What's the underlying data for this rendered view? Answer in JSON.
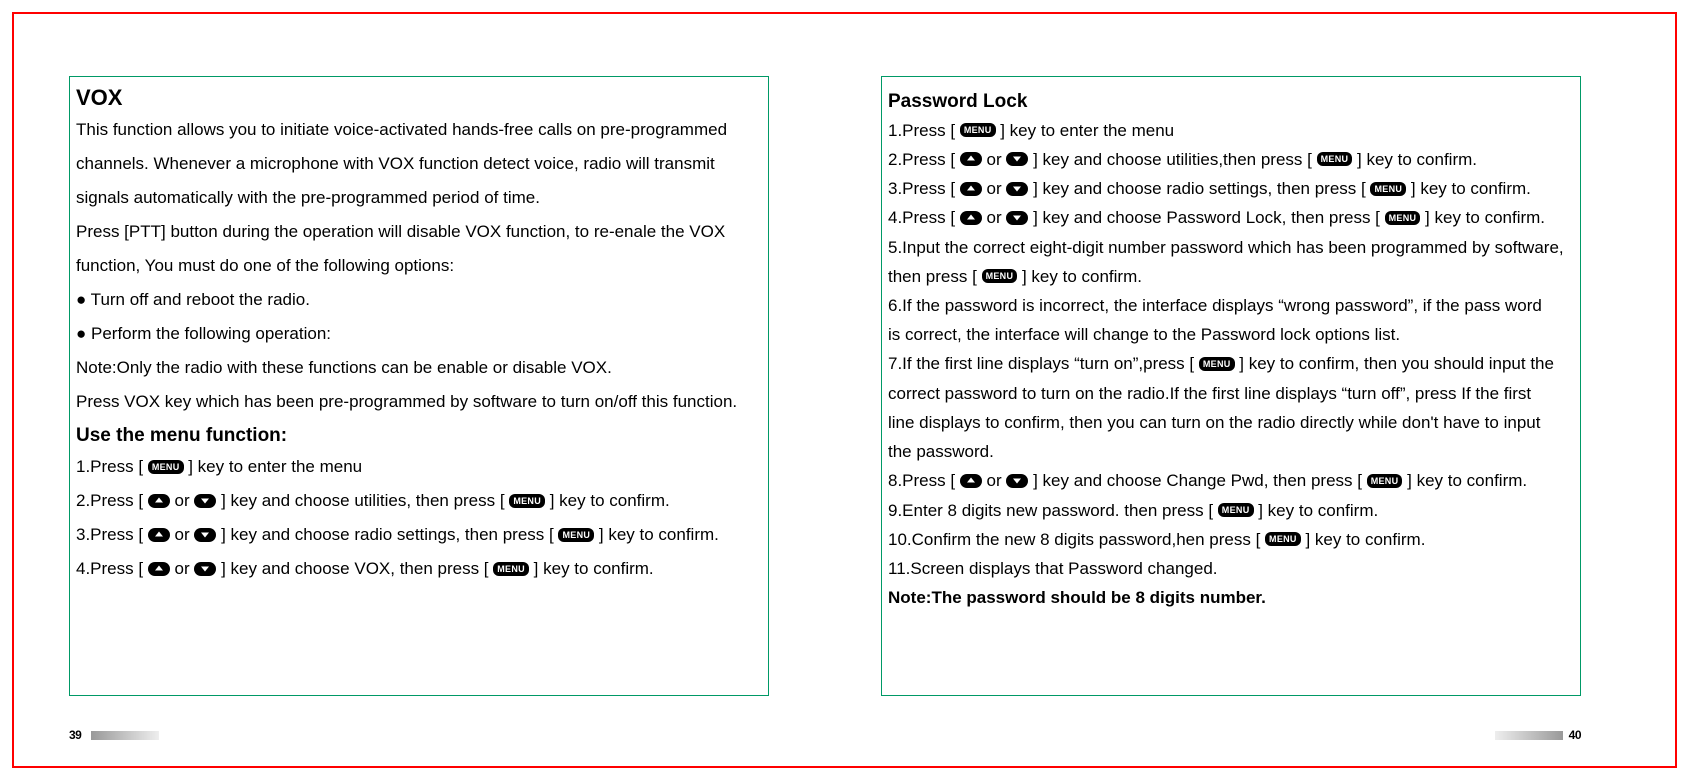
{
  "colors": {
    "outer_border": "#ff0000",
    "box_border": "#009966",
    "text": "#000000",
    "icon_bg": "#000000",
    "icon_fg": "#ffffff",
    "grad_dark": "#999999",
    "grad_light": "#eeeeee"
  },
  "typography": {
    "body_fontsize": 17,
    "heading_lg_fontsize": 22,
    "heading_md_fontsize": 19,
    "page_num_fontsize": 12
  },
  "icons": {
    "menu_label": "MENU"
  },
  "left_page": {
    "page_number": "39",
    "heading": "VOX",
    "para1_l1": "This function allows you to initiate voice-activated hands-free calls on pre-programmed",
    "para1_l2": "channels. Whenever a microphone with VOX function detect voice, radio will transmit",
    "para1_l3": "signals automatically with the pre-programmed period of time.",
    "para2_l1": "Press [PTT] button during the operation will disable VOX function, to re-enale the VOX",
    "para2_l2": "function, You must do one of the following options:",
    "bullet1": "● Turn off and reboot the radio.",
    "bullet2": "● Perform the following operation:",
    "note": "Note:Only the radio with these functions can be enable or disable VOX.",
    "hint": "Press VOX key which has been pre-programmed by software to turn on/off this function.",
    "sub_heading": "Use the menu function:",
    "step1_a": "1.Press [ ",
    "step1_b": " ] key to enter the menu",
    "step2_a": "2.Press [ ",
    "step2_mid": " or ",
    "step2_b": "  ] key and choose utilities, then press [ ",
    "step2_c": " ] key to confirm.",
    "step3_a": "3.Press [ ",
    "step3_b": "  ] key and choose radio settings, then press [ ",
    "step3_c": " ] key to confirm.",
    "step4_a": "4.Press [ ",
    "step4_b": "  ] key and choose VOX, then press [ ",
    "step4_c": " ] key to confirm."
  },
  "right_page": {
    "page_number": "40",
    "heading": "Password Lock",
    "s1_a": "1.Press [ ",
    "s1_b": " ] key to enter the menu",
    "mid_or": " or ",
    "s2_a": "2.Press [ ",
    "s2_b": "  ] key and choose utilities,then press [ ",
    "s2_c": " ] key to confirm.",
    "s3_a": "3.Press [ ",
    "s3_b": "  ] key and choose radio settings, then press [ ",
    "s3_c": " ] key to confirm.",
    "s4_a": "4.Press [ ",
    "s4_b": "  ] key and choose Password Lock, then press [ ",
    "s4_c": " ] key to confirm.",
    "s5_l1": "5.Input the correct eight-digit number password which has been programmed by software,",
    "s5_l2a": "then press [ ",
    "s5_l2b": " ] key to confirm.",
    "s6_l1": "6.If the password is incorrect, the interface displays “wrong password”, if the pass word",
    "s6_l2": "is correct, the interface will change to the Password lock options list.",
    "s7_l1a": "7.If the first line displays “turn on”,press [ ",
    "s7_l1b": " ] key to confirm, then you should input the",
    "s7_l2": "correct password to turn on the radio.If the first line displays “turn off”, press If the first",
    "s7_l3": "line displays to confirm, then you can turn on the radio directly while don't have to input",
    "s7_l4": "the password.",
    "s8_a": "8.Press [ ",
    "s8_b": " ] key and choose Change Pwd, then press [ ",
    "s8_c": " ] key to confirm.",
    "s9_a": "9.Enter 8 digits new password. then press [ ",
    "s9_b": " ] key to confirm.",
    "s10_a": "10.Confirm the new 8 digits password,hen press [ ",
    "s10_b": " ] key to confirm.",
    "s11": "11.Screen displays that Password changed.",
    "note": "Note:The password should be 8 digits number."
  }
}
